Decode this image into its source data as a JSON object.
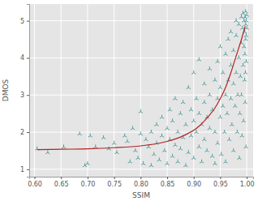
{
  "chart_data": {
    "type": "scatter",
    "x_label": "SSIM",
    "y_label": "DMOS",
    "xlim": [
      0.59,
      1.012
    ],
    "ylim": [
      0.8,
      5.45
    ],
    "xticks": [
      {
        "value": 0.6,
        "label": "0.60"
      },
      {
        "value": 0.65,
        "label": "0.65"
      },
      {
        "value": 0.7,
        "label": "0.70"
      },
      {
        "value": 0.75,
        "label": "0.75"
      },
      {
        "value": 0.8,
        "label": "0.80"
      },
      {
        "value": 0.85,
        "label": "0.85"
      },
      {
        "value": 0.9,
        "label": "0.90"
      },
      {
        "value": 0.95,
        "label": "0.95"
      },
      {
        "value": 1.0,
        "label": "1.00"
      }
    ],
    "yticks": [
      1,
      2,
      3,
      4,
      5
    ],
    "grid": true,
    "series": [
      {
        "type": "scatter",
        "color": "#2e8b8b",
        "marker": "tri_up",
        "x": [
          0.605,
          0.625,
          0.655,
          0.685,
          0.695,
          0.7,
          0.705,
          0.715,
          0.73,
          0.74,
          0.75,
          0.755,
          0.77,
          0.775,
          0.78,
          0.785,
          0.79,
          0.795,
          0.8,
          0.8,
          0.805,
          0.81,
          0.815,
          0.82,
          0.82,
          0.825,
          0.83,
          0.83,
          0.835,
          0.84,
          0.84,
          0.845,
          0.85,
          0.85,
          0.855,
          0.855,
          0.86,
          0.86,
          0.865,
          0.865,
          0.87,
          0.87,
          0.875,
          0.875,
          0.88,
          0.88,
          0.885,
          0.885,
          0.89,
          0.89,
          0.895,
          0.895,
          0.9,
          0.9,
          0.9,
          0.905,
          0.905,
          0.91,
          0.91,
          0.91,
          0.915,
          0.915,
          0.92,
          0.92,
          0.92,
          0.925,
          0.925,
          0.93,
          0.93,
          0.93,
          0.935,
          0.935,
          0.94,
          0.94,
          0.94,
          0.945,
          0.945,
          0.945,
          0.95,
          0.95,
          0.95,
          0.952,
          0.955,
          0.955,
          0.958,
          0.96,
          0.96,
          0.96,
          0.963,
          0.965,
          0.965,
          0.967,
          0.97,
          0.97,
          0.97,
          0.972,
          0.975,
          0.975,
          0.975,
          0.978,
          0.98,
          0.98,
          0.98,
          0.982,
          0.983,
          0.985,
          0.985,
          0.986,
          0.987,
          0.988,
          0.99,
          0.99,
          0.99,
          0.991,
          0.992,
          0.993,
          0.993,
          0.994,
          0.995,
          0.995,
          0.996,
          0.996,
          0.997,
          0.997,
          0.998,
          0.998,
          0.998,
          0.999,
          0.999,
          0.999,
          1.0,
          1.0,
          0.9985,
          0.9965,
          0.9975
        ],
        "values": [
          1.55,
          1.45,
          1.6,
          1.95,
          1.1,
          1.15,
          1.9,
          1.6,
          1.85,
          1.55,
          1.7,
          1.45,
          1.9,
          1.75,
          1.2,
          2.1,
          1.5,
          1.3,
          1.95,
          2.55,
          1.15,
          1.8,
          1.6,
          2.0,
          1.1,
          1.4,
          2.2,
          1.7,
          1.25,
          1.9,
          2.4,
          1.5,
          1.15,
          2.1,
          1.8,
          2.6,
          1.35,
          2.3,
          1.65,
          2.9,
          2.0,
          1.2,
          2.5,
          1.55,
          1.85,
          2.8,
          1.1,
          2.2,
          1.45,
          3.2,
          2.6,
          1.9,
          2.3,
          1.3,
          3.6,
          2.0,
          2.9,
          1.6,
          2.5,
          3.95,
          2.2,
          1.2,
          2.8,
          1.8,
          3.3,
          2.4,
          1.5,
          3.0,
          2.1,
          3.7,
          1.35,
          2.6,
          3.4,
          2.0,
          1.15,
          2.9,
          3.9,
          1.7,
          2.4,
          3.2,
          4.3,
          1.4,
          2.7,
          3.6,
          2.0,
          3.0,
          4.1,
          1.2,
          2.5,
          3.4,
          4.5,
          1.8,
          2.9,
          3.8,
          4.7,
          2.2,
          3.3,
          4.2,
          1.5,
          2.7,
          3.6,
          4.6,
          5.0,
          2.0,
          3.0,
          4.0,
          4.9,
          1.3,
          2.5,
          3.5,
          4.4,
          5.1,
          3.0,
          1.9,
          4.8,
          3.8,
          5.2,
          2.3,
          4.3,
          5.0,
          3.4,
          4.7,
          5.1,
          2.8,
          4.5,
          4.9,
          5.25,
          3.9,
          4.6,
          5.0,
          4.8,
          5.15,
          1.6,
          4.1,
          3.6
        ]
      },
      {
        "type": "line",
        "color": "#b22222",
        "line_style": "solid",
        "x": [
          0.605,
          0.65,
          0.7,
          0.75,
          0.8,
          0.83,
          0.85,
          0.87,
          0.88,
          0.89,
          0.9,
          0.91,
          0.92,
          0.93,
          0.94,
          0.95,
          0.96,
          0.97,
          0.98,
          0.99,
          0.997
        ],
        "values": [
          1.53,
          1.54,
          1.55,
          1.58,
          1.63,
          1.69,
          1.75,
          1.84,
          1.9,
          1.97,
          2.05,
          2.16,
          2.3,
          2.46,
          2.65,
          2.9,
          3.2,
          3.6,
          4.05,
          4.5,
          4.85
        ]
      }
    ]
  }
}
